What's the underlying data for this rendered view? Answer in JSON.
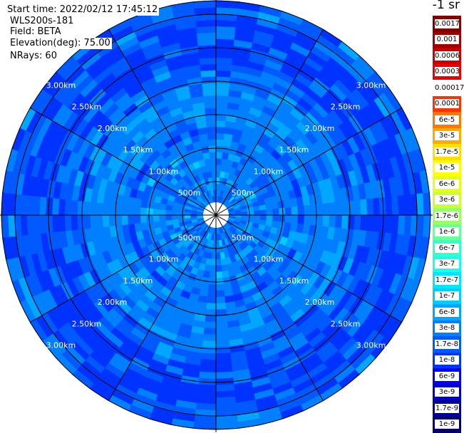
{
  "header": {
    "start_time": "Start time: 2022/02/12 17:45:12",
    "station": "WLS200s-181",
    "field": "Field: BETA",
    "elevation": "Elevation(deg): 75.00",
    "nrays": "NRays: 60"
  },
  "colorbar": {
    "title": "-1 sr",
    "entries": [
      {
        "label": "0.0017",
        "color": "#800000"
      },
      {
        "label": "0.001",
        "color": "#a00000"
      },
      {
        "label": "0.0006",
        "color": "#cc0000"
      },
      {
        "label": "0.0003",
        "color": "#ee0000"
      },
      {
        "label": "0.00017",
        "color": "#ffffff"
      },
      {
        "label": "0.0001",
        "color": "#ff3300"
      },
      {
        "label": "6e-5",
        "color": "#ff7700"
      },
      {
        "label": "3e-5",
        "color": "#ffaa00"
      },
      {
        "label": "1.7e-5",
        "color": "#ffdd00"
      },
      {
        "label": "1e-5",
        "color": "#ffff00"
      },
      {
        "label": "6e-6",
        "color": "#e6ff1a"
      },
      {
        "label": "3e-6",
        "color": "#ccff33"
      },
      {
        "label": "1.7e-6",
        "color": "#99ff66"
      },
      {
        "label": "1e-6",
        "color": "#66ff99"
      },
      {
        "label": "6e-7",
        "color": "#33ffcc"
      },
      {
        "label": "3e-7",
        "color": "#1affe6"
      },
      {
        "label": "1.7e-7",
        "color": "#00e6ff"
      },
      {
        "label": "1e-7",
        "color": "#00ccff"
      },
      {
        "label": "6e-8",
        "color": "#00a6ff"
      },
      {
        "label": "3e-8",
        "color": "#0080ff"
      },
      {
        "label": "1.7e-8",
        "color": "#005aff"
      },
      {
        "label": "1e-8",
        "color": "#0033ff"
      },
      {
        "label": "6e-9",
        "color": "#0000ff"
      },
      {
        "label": "3e-9",
        "color": "#0000cc"
      },
      {
        "label": "1.7e-9",
        "color": "#000099"
      },
      {
        "label": "1e-9",
        "color": "#000066"
      }
    ]
  },
  "chart_data": {
    "type": "heatmap",
    "projection": "polar (PPI)",
    "range_rings": [
      "500m",
      "1.00km",
      "1.50km",
      "2.00km",
      "2.50km",
      "3.00km"
    ],
    "range_ring_values_km": [
      0.5,
      1.0,
      1.5,
      2.0,
      2.5,
      3.0
    ],
    "max_range_km": 3.2,
    "n_rays": 60,
    "n_gates": 32,
    "ring_label_angles_deg": [
      -50,
      50,
      130,
      230
    ],
    "radial_spokes_deg": [
      0,
      30,
      60,
      90,
      120,
      150,
      180,
      210,
      240,
      270,
      300,
      330
    ],
    "palette": [
      "#0033ff",
      "#005aff",
      "#0080ff",
      "#00a6ff",
      "#00ccff"
    ],
    "value_range": [
      "1e-8",
      "1e-7"
    ],
    "dominant_value": "3e-8",
    "grid": true
  }
}
